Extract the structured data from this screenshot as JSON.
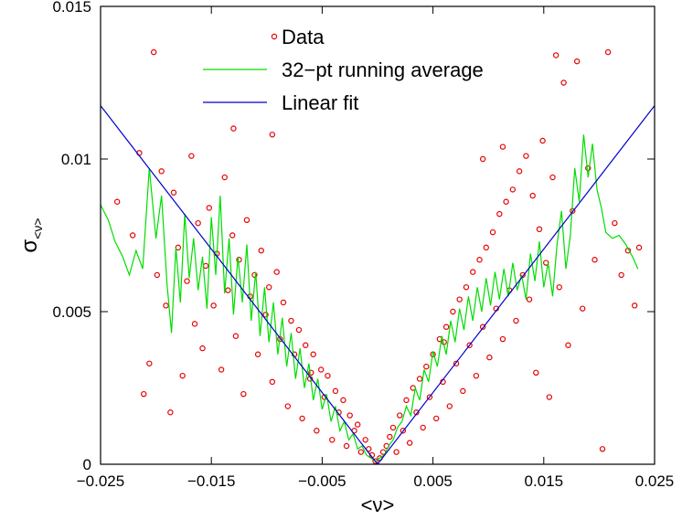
{
  "chart_data": {
    "type": "scatter",
    "xlabel": "<ν>",
    "ylabel_main": "σ",
    "ylabel_sub": "<ν>",
    "xlim": [
      -0.025,
      0.025
    ],
    "ylim": [
      0,
      0.015
    ],
    "x_ticks": [
      -0.025,
      -0.015,
      -0.005,
      0.005,
      0.015,
      0.025
    ],
    "x_tick_labels": [
      "−0.025",
      "−0.015",
      "−0.005",
      "0.005",
      "0.015",
      "0.025"
    ],
    "y_ticks": [
      0,
      0.005,
      0.01,
      0.015
    ],
    "y_tick_labels": [
      "0",
      "0.005",
      "0.01",
      "0.015"
    ],
    "legend": {
      "position": "top-center",
      "entries": [
        {
          "label": "Data",
          "kind": "marker",
          "color": "#e60000"
        },
        {
          "label": "32−pt running average",
          "kind": "line",
          "color": "#00dd00"
        },
        {
          "label": "Linear fit",
          "kind": "line",
          "color": "#0000cc"
        }
      ]
    },
    "series": [
      {
        "name": "Data",
        "style": "open-circle",
        "color": "#e60000",
        "points": [
          [
            -0.0235,
            0.0086
          ],
          [
            -0.0221,
            0.0075
          ],
          [
            -0.0215,
            0.0102
          ],
          [
            -0.0211,
            0.0023
          ],
          [
            -0.0206,
            0.0033
          ],
          [
            -0.0202,
            0.0135
          ],
          [
            -0.0199,
            0.0062
          ],
          [
            -0.0195,
            0.0096
          ],
          [
            -0.0191,
            0.0052
          ],
          [
            -0.0187,
            0.0017
          ],
          [
            -0.0184,
            0.0089
          ],
          [
            -0.018,
            0.0071
          ],
          [
            -0.0176,
            0.0029
          ],
          [
            -0.0172,
            0.006
          ],
          [
            -0.0168,
            0.0101
          ],
          [
            -0.0165,
            0.0046
          ],
          [
            -0.0162,
            0.0079
          ],
          [
            -0.0158,
            0.0038
          ],
          [
            -0.0155,
            0.0065
          ],
          [
            -0.0152,
            0.0084
          ],
          [
            -0.0148,
            0.0052
          ],
          [
            -0.0145,
            0.0069
          ],
          [
            -0.0141,
            0.0031
          ],
          [
            -0.0138,
            0.0094
          ],
          [
            -0.0135,
            0.0057
          ],
          [
            -0.0131,
            0.0075
          ],
          [
            -0.0128,
            0.0042
          ],
          [
            -0.0125,
            0.0067
          ],
          [
            -0.0121,
            0.0023
          ],
          [
            -0.0118,
            0.008
          ],
          [
            -0.0115,
            0.0055
          ],
          [
            -0.0111,
            0.0062
          ],
          [
            -0.0108,
            0.0036
          ],
          [
            -0.0105,
            0.007
          ],
          [
            -0.0101,
            0.0049
          ],
          [
            -0.0098,
            0.0058
          ],
          [
            -0.0095,
            0.0027
          ],
          [
            -0.0091,
            0.0063
          ],
          [
            -0.0088,
            0.0041
          ],
          [
            -0.0085,
            0.0053
          ],
          [
            -0.0081,
            0.0019
          ],
          [
            -0.0078,
            0.0047
          ],
          [
            -0.0075,
            0.0036
          ],
          [
            -0.0071,
            0.0044
          ],
          [
            -0.0068,
            0.0015
          ],
          [
            -0.0065,
            0.0039
          ],
          [
            -0.0061,
            0.0028
          ],
          [
            -0.0058,
            0.0036
          ],
          [
            -0.0055,
            0.0011
          ],
          [
            -0.0051,
            0.0031
          ],
          [
            -0.0048,
            0.0022
          ],
          [
            -0.0045,
            0.0029
          ],
          [
            -0.0041,
            0.0008
          ],
          [
            -0.0038,
            0.0024
          ],
          [
            -0.0035,
            0.0017
          ],
          [
            -0.0031,
            0.0021
          ],
          [
            -0.0028,
            0.0006
          ],
          [
            -0.0025,
            0.0016
          ],
          [
            -0.0021,
            0.0011
          ],
          [
            -0.0018,
            0.0013
          ],
          [
            -0.0015,
            0.0004
          ],
          [
            -0.0011,
            0.0008
          ],
          [
            -0.0008,
            0.0005
          ],
          [
            -0.0005,
            0.0003
          ],
          [
            -0.0002,
            0.0001
          ],
          [
            0.0002,
            0.0002
          ],
          [
            0.0005,
            0.0004
          ],
          [
            0.0008,
            0.0006
          ],
          [
            0.0011,
            0.0009
          ],
          [
            0.0014,
            0.0012
          ],
          [
            0.0017,
            0.0004
          ],
          [
            0.002,
            0.0016
          ],
          [
            0.0023,
            0.0011
          ],
          [
            0.0026,
            0.0021
          ],
          [
            0.0029,
            0.0007
          ],
          [
            0.0032,
            0.0025
          ],
          [
            0.0035,
            0.0017
          ],
          [
            0.0038,
            0.0028
          ],
          [
            0.0041,
            0.0012
          ],
          [
            0.0044,
            0.0032
          ],
          [
            0.0047,
            0.0022
          ],
          [
            0.005,
            0.0036
          ],
          [
            0.0053,
            0.0015
          ],
          [
            0.0056,
            0.0041
          ],
          [
            0.0059,
            0.0027
          ],
          [
            0.0062,
            0.0045
          ],
          [
            0.0065,
            0.0019
          ],
          [
            0.0068,
            0.005
          ],
          [
            0.0071,
            0.0033
          ],
          [
            0.0074,
            0.0054
          ],
          [
            0.0077,
            0.0024
          ],
          [
            0.008,
            0.0058
          ],
          [
            0.0083,
            0.0039
          ],
          [
            0.0086,
            0.0063
          ],
          [
            0.0089,
            0.0029
          ],
          [
            0.0092,
            0.0067
          ],
          [
            0.0095,
            0.0045
          ],
          [
            0.0098,
            0.0071
          ],
          [
            0.0101,
            0.0035
          ],
          [
            0.0104,
            0.0076
          ],
          [
            0.0107,
            0.0051
          ],
          [
            0.011,
            0.0082
          ],
          [
            0.0113,
            0.0041
          ],
          [
            0.0116,
            0.0086
          ],
          [
            0.0119,
            0.0057
          ],
          [
            0.0122,
            0.009
          ],
          [
            0.0125,
            0.0047
          ],
          [
            0.0128,
            0.0096
          ],
          [
            0.0131,
            0.0062
          ],
          [
            0.0134,
            0.0101
          ],
          [
            0.0137,
            0.0054
          ],
          [
            0.014,
            0.0088
          ],
          [
            0.0143,
            0.003
          ],
          [
            0.0146,
            0.0077
          ],
          [
            0.0149,
            0.0106
          ],
          [
            0.0152,
            0.0066
          ],
          [
            0.0155,
            0.0022
          ],
          [
            0.0158,
            0.0094
          ],
          [
            0.0161,
            0.0134
          ],
          [
            0.0164,
            0.0058
          ],
          [
            0.0168,
            0.0125
          ],
          [
            0.0172,
            0.0039
          ],
          [
            0.0176,
            0.0083
          ],
          [
            0.018,
            0.0132
          ],
          [
            0.0185,
            0.0051
          ],
          [
            0.019,
            0.0097
          ],
          [
            0.0196,
            0.0067
          ],
          [
            0.0203,
            0.0005
          ],
          [
            0.0208,
            0.0135
          ],
          [
            0.0214,
            0.0079
          ],
          [
            0.022,
            0.0062
          ],
          [
            0.0226,
            0.007
          ],
          [
            0.0232,
            0.0052
          ],
          [
            0.0236,
            0.0071
          ],
          [
            -0.0095,
            0.0108
          ],
          [
            0.0113,
            0.0104
          ],
          [
            -0.006,
            0.003
          ],
          [
            0.006,
            0.004
          ],
          [
            -0.013,
            0.011
          ],
          [
            0.0095,
            0.01
          ]
        ]
      },
      {
        "name": "32−pt running average",
        "style": "line",
        "color": "#00dd00",
        "points": [
          [
            -0.025,
            0.0085
          ],
          [
            -0.0243,
            0.008
          ],
          [
            -0.0237,
            0.0073
          ],
          [
            -0.023,
            0.0068
          ],
          [
            -0.0224,
            0.0062
          ],
          [
            -0.0218,
            0.007
          ],
          [
            -0.0212,
            0.0064
          ],
          [
            -0.0206,
            0.0097
          ],
          [
            -0.02,
            0.0074
          ],
          [
            -0.0195,
            0.0088
          ],
          [
            -0.019,
            0.0059
          ],
          [
            -0.0186,
            0.0043
          ],
          [
            -0.0182,
            0.0071
          ],
          [
            -0.0178,
            0.0053
          ],
          [
            -0.0174,
            0.0082
          ],
          [
            -0.017,
            0.0061
          ],
          [
            -0.0166,
            0.0074
          ],
          [
            -0.0162,
            0.0057
          ],
          [
            -0.0158,
            0.0068
          ],
          [
            -0.0154,
            0.0051
          ],
          [
            -0.015,
            0.0081
          ],
          [
            -0.0146,
            0.0062
          ],
          [
            -0.0142,
            0.0088
          ],
          [
            -0.0138,
            0.0056
          ],
          [
            -0.0134,
            0.0074
          ],
          [
            -0.013,
            0.0049
          ],
          [
            -0.0126,
            0.0068
          ],
          [
            -0.0122,
            0.0053
          ],
          [
            -0.0118,
            0.0072
          ],
          [
            -0.0114,
            0.0047
          ],
          [
            -0.011,
            0.0063
          ],
          [
            -0.0106,
            0.0042
          ],
          [
            -0.0102,
            0.0058
          ],
          [
            -0.0098,
            0.004
          ],
          [
            -0.0094,
            0.0053
          ],
          [
            -0.009,
            0.0036
          ],
          [
            -0.0086,
            0.0048
          ],
          [
            -0.0082,
            0.0032
          ],
          [
            -0.0078,
            0.0043
          ],
          [
            -0.0074,
            0.0028
          ],
          [
            -0.007,
            0.0038
          ],
          [
            -0.0066,
            0.0025
          ],
          [
            -0.0062,
            0.0033
          ],
          [
            -0.0058,
            0.0021
          ],
          [
            -0.0054,
            0.0028
          ],
          [
            -0.005,
            0.0018
          ],
          [
            -0.0046,
            0.0023
          ],
          [
            -0.0042,
            0.0014
          ],
          [
            -0.0038,
            0.0019
          ],
          [
            -0.0034,
            0.0011
          ],
          [
            -0.003,
            0.0014
          ],
          [
            -0.0026,
            0.0008
          ],
          [
            -0.0022,
            0.001
          ],
          [
            -0.0018,
            0.0005
          ],
          [
            -0.0014,
            0.0006
          ],
          [
            -0.001,
            0.0003
          ],
          [
            -0.0006,
            0.0002
          ],
          [
            -0.0002,
            0.0001
          ],
          [
            0.0002,
            0.0002
          ],
          [
            0.0006,
            0.0003
          ],
          [
            0.001,
            0.0006
          ],
          [
            0.0014,
            0.0008
          ],
          [
            0.0018,
            0.0012
          ],
          [
            0.0022,
            0.0014
          ],
          [
            0.0026,
            0.0019
          ],
          [
            0.003,
            0.0016
          ],
          [
            0.0034,
            0.0025
          ],
          [
            0.0038,
            0.0021
          ],
          [
            0.0042,
            0.0031
          ],
          [
            0.0046,
            0.0027
          ],
          [
            0.005,
            0.0037
          ],
          [
            0.0054,
            0.0032
          ],
          [
            0.0058,
            0.0042
          ],
          [
            0.0062,
            0.0036
          ],
          [
            0.0066,
            0.0047
          ],
          [
            0.007,
            0.004
          ],
          [
            0.0074,
            0.0051
          ],
          [
            0.0078,
            0.0044
          ],
          [
            0.0082,
            0.0055
          ],
          [
            0.0086,
            0.0047
          ],
          [
            0.009,
            0.0058
          ],
          [
            0.0094,
            0.005
          ],
          [
            0.0098,
            0.0061
          ],
          [
            0.0102,
            0.0052
          ],
          [
            0.0106,
            0.0063
          ],
          [
            0.011,
            0.0054
          ],
          [
            0.0114,
            0.0064
          ],
          [
            0.0118,
            0.0055
          ],
          [
            0.0122,
            0.0066
          ],
          [
            0.0126,
            0.0057
          ],
          [
            0.013,
            0.0062
          ],
          [
            0.0134,
            0.0054
          ],
          [
            0.0138,
            0.0069
          ],
          [
            0.0142,
            0.006
          ],
          [
            0.0146,
            0.0073
          ],
          [
            0.015,
            0.0058
          ],
          [
            0.0154,
            0.0066
          ],
          [
            0.0158,
            0.0055
          ],
          [
            0.0162,
            0.0072
          ],
          [
            0.0166,
            0.0083
          ],
          [
            0.017,
            0.0064
          ],
          [
            0.0174,
            0.0075
          ],
          [
            0.0178,
            0.0097
          ],
          [
            0.0182,
            0.0086
          ],
          [
            0.0186,
            0.0108
          ],
          [
            0.019,
            0.0094
          ],
          [
            0.0194,
            0.0105
          ],
          [
            0.0198,
            0.009
          ],
          [
            0.0202,
            0.0084
          ],
          [
            0.0206,
            0.0076
          ],
          [
            0.0212,
            0.0074
          ],
          [
            0.0218,
            0.0075
          ],
          [
            0.0224,
            0.0072
          ],
          [
            0.023,
            0.0068
          ],
          [
            0.0235,
            0.0064
          ]
        ]
      },
      {
        "name": "Linear fit",
        "style": "line",
        "color": "#0000cc",
        "points": [
          [
            -0.025,
            0.01175
          ],
          [
            0.0,
            0.0
          ],
          [
            0.025,
            0.01175
          ]
        ]
      }
    ]
  }
}
